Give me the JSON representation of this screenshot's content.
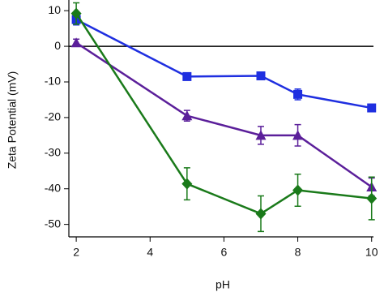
{
  "chart_data": {
    "type": "line",
    "xlabel": "pH",
    "ylabel": "Zeta Potential (mV)",
    "x": [
      2,
      5,
      7,
      8,
      10
    ],
    "series": [
      {
        "color": "#1f2fe0",
        "marker": "square",
        "values": [
          7.5,
          -8.5,
          -8.3,
          -13.5,
          -17.3
        ],
        "errors": [
          1.5,
          1,
          1,
          1.5,
          1
        ]
      },
      {
        "color": "#5b1f9a",
        "marker": "triangle",
        "values": [
          1,
          -19.5,
          -25,
          -25,
          -39.5
        ],
        "errors": [
          1,
          1.5,
          2.5,
          3,
          2.5
        ]
      },
      {
        "color": "#1a7a1a",
        "marker": "diamond",
        "values": [
          9.2,
          -38.6,
          -47,
          -40.4,
          -42.7
        ],
        "errors": [
          3,
          4.5,
          5,
          4.5,
          6
        ]
      }
    ],
    "reference_line": 0,
    "xlim": [
      1.8,
      10.05
    ],
    "ylim": [
      -53.5,
      13
    ],
    "xticks": [
      2,
      4,
      6,
      8,
      10
    ],
    "yticks": [
      10,
      0,
      -10,
      -20,
      -30,
      -40,
      -50
    ]
  }
}
